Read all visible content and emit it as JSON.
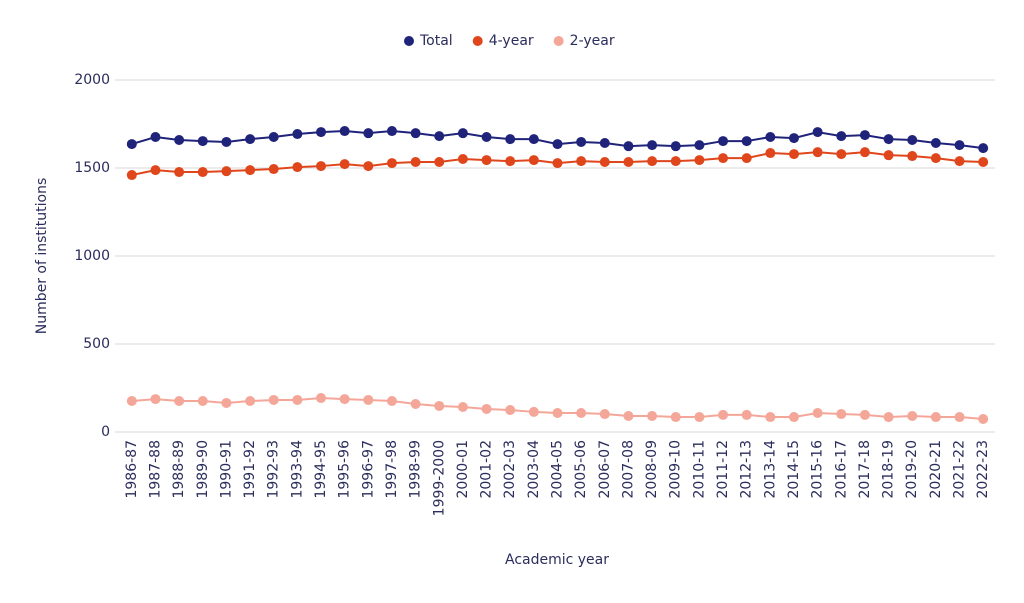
{
  "chart_data": {
    "type": "line",
    "x_label": "Academic year",
    "y_label": "Number of institutions",
    "categories": [
      "1986-87",
      "1987-88",
      "1988-89",
      "1989-90",
      "1990-91",
      "1991-92",
      "1992-93",
      "1993-94",
      "1994-95",
      "1995-96",
      "1996-97",
      "1997-98",
      "1998-99",
      "1999-2000",
      "2000-01",
      "2001-02",
      "2002-03",
      "2003-04",
      "2004-05",
      "2005-06",
      "2006-07",
      "2007-08",
      "2008-09",
      "2009-10",
      "2010-11",
      "2011-12",
      "2012-13",
      "2013-14",
      "2014-15",
      "2015-16",
      "2016-17",
      "2017-18",
      "2018-19",
      "2019-20",
      "2020-21",
      "2021-22",
      "2022-23"
    ],
    "series": [
      {
        "name": "Total",
        "color": "#1f237a",
        "values": [
          1636,
          1676,
          1659,
          1653,
          1648,
          1664,
          1676,
          1693,
          1704,
          1710,
          1698,
          1710,
          1698,
          1681,
          1698,
          1676,
          1664,
          1664,
          1636,
          1648,
          1642,
          1624,
          1630,
          1624,
          1630,
          1653,
          1653,
          1676,
          1670,
          1704,
          1681,
          1687,
          1664,
          1659,
          1642,
          1630,
          1613
        ]
      },
      {
        "name": "4-year",
        "color": "#e0461c",
        "values": [
          1460,
          1488,
          1477,
          1477,
          1482,
          1488,
          1494,
          1505,
          1511,
          1522,
          1511,
          1528,
          1534,
          1534,
          1551,
          1545,
          1539,
          1545,
          1528,
          1539,
          1534,
          1534,
          1539,
          1539,
          1545,
          1556,
          1556,
          1585,
          1579,
          1590,
          1579,
          1590,
          1573,
          1568,
          1556,
          1539,
          1534
        ]
      },
      {
        "name": "2-year",
        "color": "#f4a698",
        "values": [
          176,
          187,
          176,
          176,
          165,
          176,
          182,
          182,
          193,
          187,
          182,
          176,
          159,
          148,
          142,
          131,
          125,
          114,
          108,
          108,
          102,
          91,
          91,
          85,
          85,
          97,
          97,
          85,
          85,
          108,
          102,
          97,
          85,
          91,
          85,
          85,
          74
        ]
      }
    ],
    "ylim": [
      0,
      2000
    ],
    "yticks": [
      0,
      500,
      1000,
      1500,
      2000
    ],
    "grid": true
  }
}
